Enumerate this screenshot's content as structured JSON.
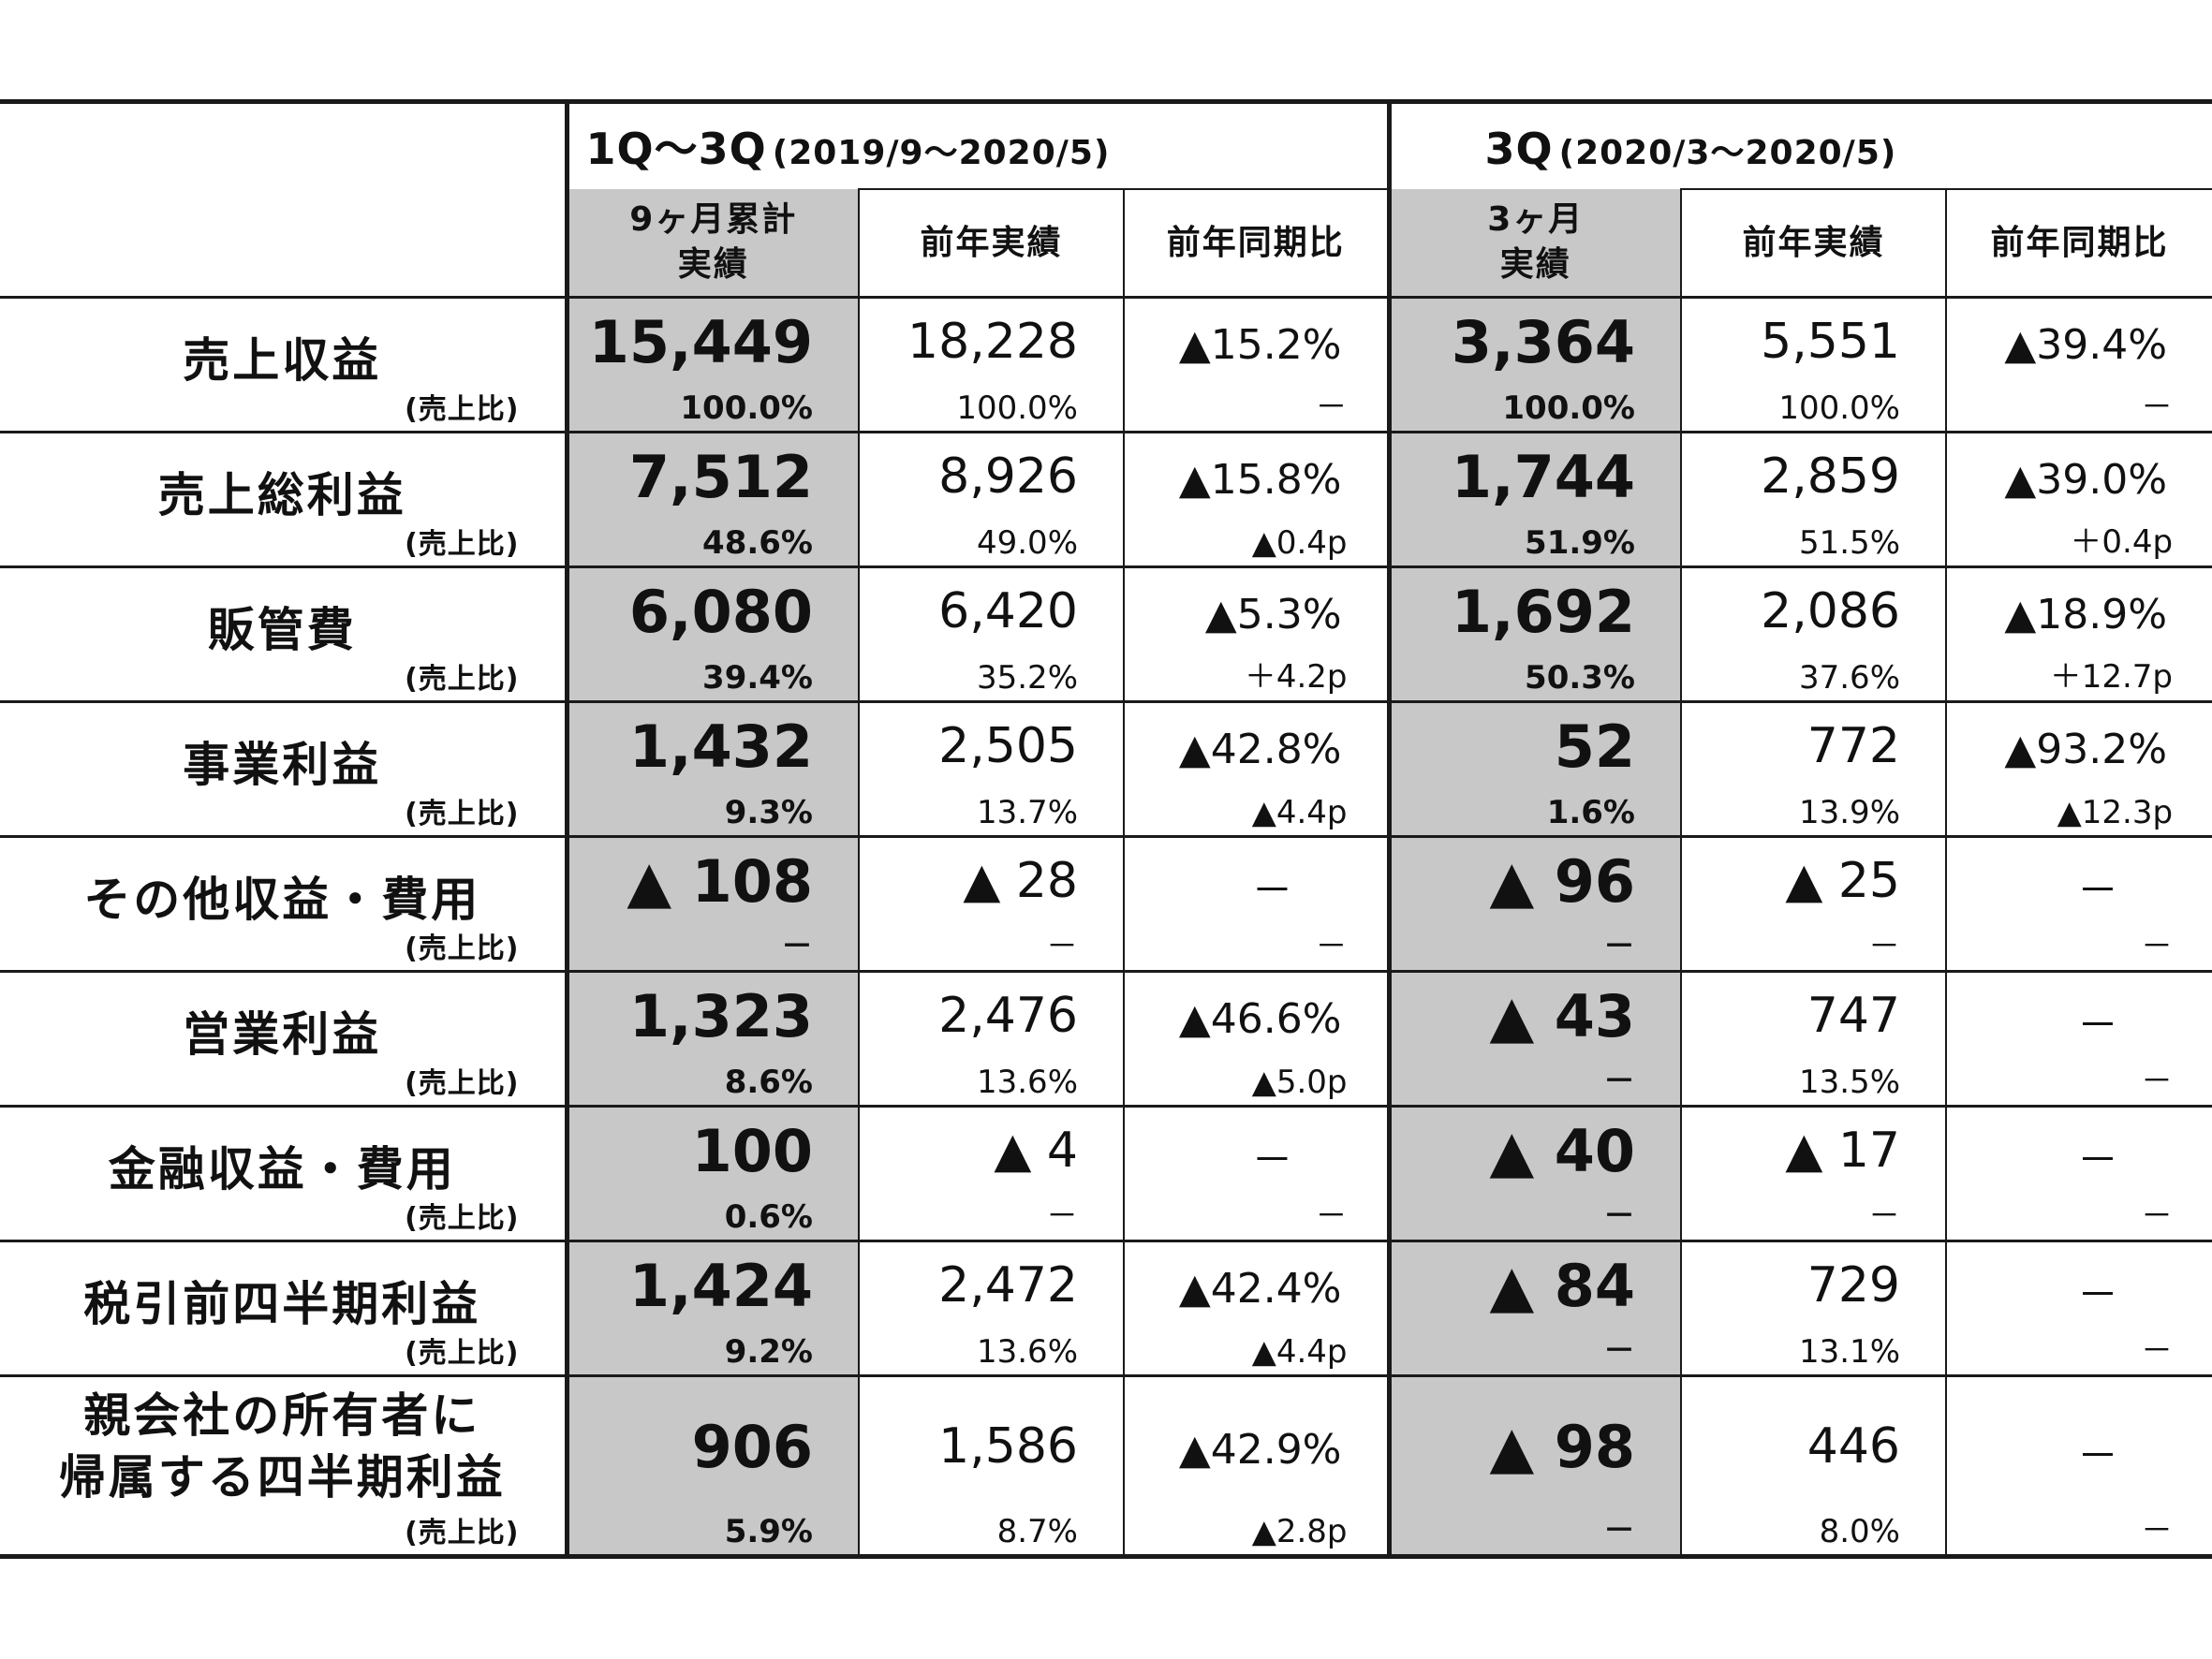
{
  "header": {
    "period1": {
      "code": "1Q～3Q",
      "range": "(2019/9～2020/5)"
    },
    "period2": {
      "code": "3Q",
      "range": "(2020/3～2020/5)"
    },
    "p1_actual_line1": "9ヶ月累計",
    "p1_actual_line2": "実績",
    "p2_actual_line1": "3ヶ月",
    "p2_actual_line2": "実績",
    "prev_year": "前年実績",
    "yoy": "前年同期比"
  },
  "ratio_label": "(売上比)",
  "rows": [
    {
      "label": "売上収益",
      "p1": {
        "actual": "15,449",
        "actual_ratio": "100.0%",
        "prev": "18,228",
        "prev_ratio": "100.0%",
        "yoy": "▲15.2%",
        "yoy_pt": "－"
      },
      "p2": {
        "actual": "3,364",
        "actual_ratio": "100.0%",
        "prev": "5,551",
        "prev_ratio": "100.0%",
        "yoy": "▲39.4%",
        "yoy_pt": "－"
      }
    },
    {
      "label": "売上総利益",
      "p1": {
        "actual": "7,512",
        "actual_ratio": "48.6%",
        "prev": "8,926",
        "prev_ratio": "49.0%",
        "yoy": "▲15.8%",
        "yoy_pt": "▲0.4p"
      },
      "p2": {
        "actual": "1,744",
        "actual_ratio": "51.9%",
        "prev": "2,859",
        "prev_ratio": "51.5%",
        "yoy": "▲39.0%",
        "yoy_pt": "＋0.4p"
      }
    },
    {
      "label": "販管費",
      "p1": {
        "actual": "6,080",
        "actual_ratio": "39.4%",
        "prev": "6,420",
        "prev_ratio": "35.2%",
        "yoy": "▲5.3%",
        "yoy_pt": "＋4.2p"
      },
      "p2": {
        "actual": "1,692",
        "actual_ratio": "50.3%",
        "prev": "2,086",
        "prev_ratio": "37.6%",
        "yoy": "▲18.9%",
        "yoy_pt": "＋12.7p"
      }
    },
    {
      "label": "事業利益",
      "p1": {
        "actual": "1,432",
        "actual_ratio": "9.3%",
        "prev": "2,505",
        "prev_ratio": "13.7%",
        "yoy": "▲42.8%",
        "yoy_pt": "▲4.4p"
      },
      "p2": {
        "actual": "52",
        "actual_ratio": "1.6%",
        "prev": "772",
        "prev_ratio": "13.9%",
        "yoy": "▲93.2%",
        "yoy_pt": "▲12.3p"
      }
    },
    {
      "label": "その他収益・費用",
      "p1": {
        "actual": "▲ 108",
        "actual_ratio": "－",
        "prev": "▲ 28",
        "prev_ratio": "－",
        "yoy": "－",
        "yoy_pt": "－"
      },
      "p2": {
        "actual": "▲ 96",
        "actual_ratio": "－",
        "prev": "▲ 25",
        "prev_ratio": "－",
        "yoy": "－",
        "yoy_pt": "－"
      }
    },
    {
      "label": "営業利益",
      "p1": {
        "actual": "1,323",
        "actual_ratio": "8.6%",
        "prev": "2,476",
        "prev_ratio": "13.6%",
        "yoy": "▲46.6%",
        "yoy_pt": "▲5.0p"
      },
      "p2": {
        "actual": "▲ 43",
        "actual_ratio": "－",
        "prev": "747",
        "prev_ratio": "13.5%",
        "yoy": "－",
        "yoy_pt": "－"
      }
    },
    {
      "label": "金融収益・費用",
      "p1": {
        "actual": "100",
        "actual_ratio": "0.6%",
        "prev": "▲ 4",
        "prev_ratio": "－",
        "yoy": "－",
        "yoy_pt": "－"
      },
      "p2": {
        "actual": "▲ 40",
        "actual_ratio": "－",
        "prev": "▲ 17",
        "prev_ratio": "－",
        "yoy": "－",
        "yoy_pt": "－"
      }
    },
    {
      "label": "税引前四半期利益",
      "p1": {
        "actual": "1,424",
        "actual_ratio": "9.2%",
        "prev": "2,472",
        "prev_ratio": "13.6%",
        "yoy": "▲42.4%",
        "yoy_pt": "▲4.4p"
      },
      "p2": {
        "actual": "▲ 84",
        "actual_ratio": "－",
        "prev": "729",
        "prev_ratio": "13.1%",
        "yoy": "－",
        "yoy_pt": "－"
      }
    },
    {
      "label_line1": "親会社の所有者に",
      "label_line2": "帰属する四半期利益",
      "p1": {
        "actual": "906",
        "actual_ratio": "5.9%",
        "prev": "1,586",
        "prev_ratio": "8.7%",
        "yoy": "▲42.9%",
        "yoy_pt": "▲2.8p"
      },
      "p2": {
        "actual": "▲ 98",
        "actual_ratio": "－",
        "prev": "446",
        "prev_ratio": "8.0%",
        "yoy": "－",
        "yoy_pt": "－"
      }
    }
  ]
}
